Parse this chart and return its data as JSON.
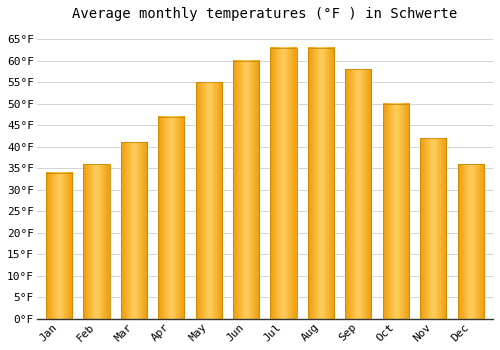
{
  "months": [
    "Jan",
    "Feb",
    "Mar",
    "Apr",
    "May",
    "Jun",
    "Jul",
    "Aug",
    "Sep",
    "Oct",
    "Nov",
    "Dec"
  ],
  "values": [
    34,
    36,
    41,
    47,
    55,
    60,
    63,
    63,
    58,
    50,
    42,
    36
  ],
  "bar_color_left": "#F5A800",
  "bar_color_center": "#FFD060",
  "bar_color_right": "#F5A800",
  "bar_edge_color": "#CC8800",
  "title": "Average monthly temperatures (°F ) in Schwerte",
  "ylim": [
    0,
    68
  ],
  "yticks": [
    0,
    5,
    10,
    15,
    20,
    25,
    30,
    35,
    40,
    45,
    50,
    55,
    60,
    65
  ],
  "ytick_labels": [
    "0°F",
    "5°F",
    "10°F",
    "15°F",
    "20°F",
    "25°F",
    "30°F",
    "35°F",
    "40°F",
    "45°F",
    "50°F",
    "55°F",
    "60°F",
    "65°F"
  ],
  "background_color": "#FFFFFF",
  "grid_color": "#CCCCCC",
  "title_fontsize": 10,
  "tick_fontsize": 8,
  "font_family": "monospace",
  "bar_width": 0.7
}
